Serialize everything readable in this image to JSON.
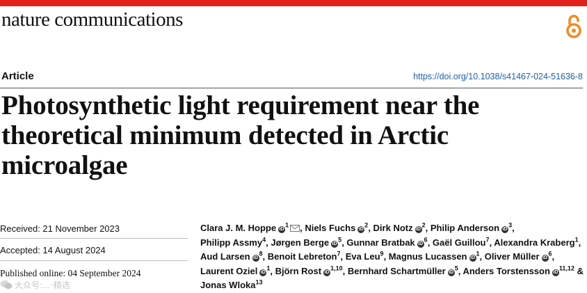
{
  "journal": {
    "name": "nature communications"
  },
  "colors": {
    "accent": "#e2211c",
    "link": "#1f5fa8",
    "open_access_icon": "#f08a24"
  },
  "icons": [
    "open-access-icon",
    "orcid-icon",
    "email-icon"
  ],
  "header": {
    "article_type": "Article",
    "doi": "https://doi.org/10.1038/s41467-024-51636-8"
  },
  "title": "Photosynthetic light requirement near the theoretical minimum detected in Arctic microalgae",
  "dates": {
    "received": "Received: 21 November 2023",
    "accepted": "Accepted: 14 August 2024",
    "published": "Published online: 04 September 2024"
  },
  "authors": [
    {
      "name": "Clara J. M. Hoppe",
      "aff": "1"
    },
    {
      "name": "Niels Fuchs",
      "aff": "2"
    },
    {
      "name": "Dirk Notz",
      "aff": "2"
    },
    {
      "name": "Philip Anderson",
      "aff": "3"
    },
    {
      "name": "Philipp Assmy",
      "aff": "4"
    },
    {
      "name": "Jørgen Berge",
      "aff": "5"
    },
    {
      "name": "Gunnar Bratbak",
      "aff": "6"
    },
    {
      "name": "Gaël Guillou",
      "aff": "7"
    },
    {
      "name": "Alexandra Kraberg",
      "aff": "1"
    },
    {
      "name": "Aud Larsen",
      "aff": "8"
    },
    {
      "name": "Benoit Lebreton",
      "aff": "7"
    },
    {
      "name": "Eva Leu",
      "aff": "9"
    },
    {
      "name": "Magnus Lucassen",
      "aff": "1"
    },
    {
      "name": "Oliver Müller",
      "aff": "6"
    },
    {
      "name": "Laurent Oziel",
      "aff": "1"
    },
    {
      "name": "Björn Rost",
      "aff": "1,10"
    },
    {
      "name": "Bernhard Schartmüller",
      "aff": "5"
    },
    {
      "name": "Anders Torstensson",
      "aff": "11,12"
    },
    {
      "name": "Jonas Wloka",
      "aff": "13"
    }
  ],
  "author_connector": "&",
  "watermark": {
    "text": "大众号:…·精选"
  }
}
